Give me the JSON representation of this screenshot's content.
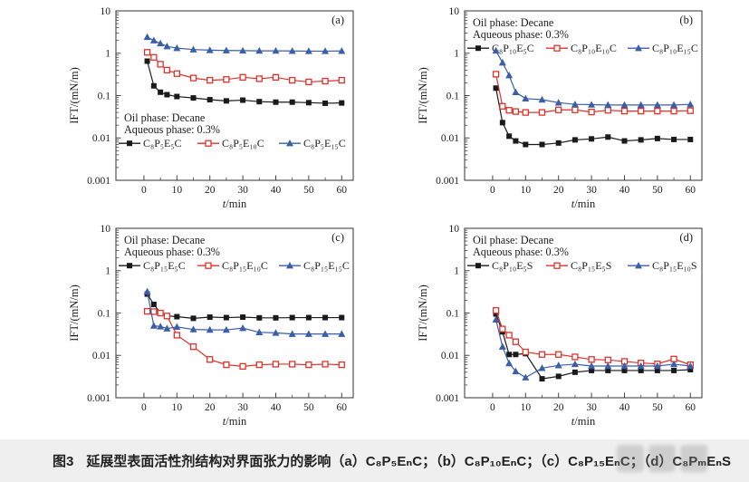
{
  "caption": {
    "label": "图3",
    "text": "延展型表面活性剂结构对界面张力的影响（a）C₈P₅EₙC；（b）C₈P₁₀EₙC；（c）C₈P₁₅EₙC；（d）C₈PₘEₙS"
  },
  "colors": {
    "black_series": "#1a1a1a",
    "red_series": "#e0312b",
    "blue_series": "#3a5fa8",
    "axis": "#444444",
    "caption_bg": "#efefef"
  },
  "chart_data": [
    {
      "type": "line",
      "panel_label": "(a)",
      "info_lines": [
        "Oil phase: Decane",
        "Aqueous phase: 0.3%"
      ],
      "info_position": "bottom-left",
      "xlabel_italic": "t",
      "xlabel_rest": "/min",
      "ylabel": "IFT/(mN/m)",
      "x_ticks": [
        0,
        10,
        20,
        30,
        40,
        50,
        60
      ],
      "y_ticks": [
        10,
        1,
        0.1,
        0.01,
        0.001
      ],
      "ylog": true,
      "xlim": [
        -8.5,
        63.5
      ],
      "x": [
        1,
        3,
        5,
        7,
        10,
        15,
        20,
        25,
        30,
        35,
        40,
        45,
        50,
        55,
        60
      ],
      "series": [
        {
          "name": "C₈P₅E₅C",
          "color": "#1a1a1a",
          "marker": "square-filled",
          "values": [
            0.65,
            0.17,
            0.12,
            0.105,
            0.095,
            0.088,
            0.08,
            0.075,
            0.078,
            0.072,
            0.07,
            0.07,
            0.068,
            0.066,
            0.067
          ]
        },
        {
          "name": "C₈P₅E₁₀C",
          "color": "#e0312b",
          "marker": "square-open",
          "values": [
            1.05,
            0.8,
            0.55,
            0.4,
            0.33,
            0.26,
            0.23,
            0.24,
            0.27,
            0.25,
            0.27,
            0.23,
            0.21,
            0.22,
            0.23
          ]
        },
        {
          "name": "C₈P₅E₁₅C",
          "color": "#3a5fa8",
          "marker": "triangle-filled",
          "values": [
            2.4,
            2.0,
            1.7,
            1.45,
            1.32,
            1.22,
            1.18,
            1.16,
            1.15,
            1.14,
            1.14,
            1.13,
            1.12,
            1.12,
            1.13
          ]
        }
      ]
    },
    {
      "type": "line",
      "panel_label": "(b)",
      "info_lines": [
        "Oil phase: Decane",
        "Aqueous phase: 0.3%"
      ],
      "info_position": "top-left",
      "xlabel_italic": "t",
      "xlabel_rest": "/min",
      "ylabel": "IFT/(mN/m)",
      "x_ticks": [
        0,
        10,
        20,
        30,
        40,
        50,
        60
      ],
      "y_ticks": [
        10,
        1,
        0.1,
        0.01,
        0.001
      ],
      "ylog": true,
      "xlim": [
        -8.5,
        63.5
      ],
      "x": [
        1,
        3,
        5,
        7,
        10,
        15,
        20,
        25,
        30,
        35,
        40,
        45,
        50,
        55,
        60
      ],
      "series": [
        {
          "name": "C₈P₁₀E₅C",
          "color": "#1a1a1a",
          "marker": "square-filled",
          "values": [
            0.15,
            0.023,
            0.011,
            0.0085,
            0.007,
            0.007,
            0.0076,
            0.009,
            0.0095,
            0.0105,
            0.0085,
            0.009,
            0.0097,
            0.0092,
            0.0092
          ]
        },
        {
          "name": "C₈P₁₀E₁₀C",
          "color": "#e0312b",
          "marker": "square-open",
          "values": [
            0.32,
            0.056,
            0.045,
            0.042,
            0.04,
            0.04,
            0.046,
            0.046,
            0.041,
            0.045,
            0.043,
            0.043,
            0.043,
            0.043,
            0.044
          ]
        },
        {
          "name": "C₈P₁₀E₁₅C",
          "color": "#3a5fa8",
          "marker": "triangle-filled",
          "values": [
            1.15,
            0.6,
            0.3,
            0.12,
            0.085,
            0.08,
            0.068,
            0.062,
            0.061,
            0.06,
            0.06,
            0.06,
            0.06,
            0.06,
            0.062
          ]
        }
      ]
    },
    {
      "type": "line",
      "panel_label": "(c)",
      "info_lines": [
        "Oil phase: Decane",
        "Aqueous phase: 0.3%"
      ],
      "info_position": "top-left",
      "xlabel_italic": "t",
      "xlabel_rest": "/min",
      "ylabel": "IFT/(mN/m)",
      "x_ticks": [
        0,
        10,
        20,
        30,
        40,
        50,
        60
      ],
      "y_ticks": [
        10,
        1,
        0.1,
        0.01,
        0.001
      ],
      "ylog": true,
      "xlim": [
        -8.5,
        63.5
      ],
      "x": [
        1,
        3,
        5,
        7,
        10,
        15,
        20,
        25,
        30,
        35,
        40,
        45,
        50,
        55,
        60
      ],
      "series": [
        {
          "name": "C₈P₁₅E₅C",
          "color": "#1a1a1a",
          "marker": "square-filled",
          "values": [
            0.28,
            0.16,
            0.1,
            0.086,
            0.082,
            0.075,
            0.08,
            0.078,
            0.08,
            0.077,
            0.077,
            0.078,
            0.078,
            0.078,
            0.078
          ]
        },
        {
          "name": "C₈P₁₅E₁₀C",
          "color": "#e0312b",
          "marker": "square-open",
          "values": [
            0.11,
            0.108,
            0.1,
            0.085,
            0.03,
            0.016,
            0.008,
            0.006,
            0.0055,
            0.006,
            0.0062,
            0.0062,
            0.006,
            0.0062,
            0.006
          ]
        },
        {
          "name": "C₈P₁₅E₁₅C",
          "color": "#3a5fa8",
          "marker": "triangle-filled",
          "values": [
            0.32,
            0.05,
            0.048,
            0.043,
            0.047,
            0.041,
            0.04,
            0.04,
            0.044,
            0.035,
            0.034,
            0.032,
            0.032,
            0.032,
            0.032
          ]
        }
      ]
    },
    {
      "type": "line",
      "panel_label": "(d)",
      "info_lines": [
        "Oil phase: Decane",
        "Aqueous phase: 0.3%"
      ],
      "info_position": "top-left",
      "xlabel_italic": "t",
      "xlabel_rest": "/min",
      "ylabel": "IFT/(mN/m)",
      "x_ticks": [
        0,
        10,
        20,
        30,
        40,
        50,
        60
      ],
      "y_ticks": [
        10,
        1,
        0.1,
        0.01,
        0.001
      ],
      "ylog": true,
      "xlim": [
        -8.5,
        63.5
      ],
      "x": [
        1,
        3,
        5,
        7,
        10,
        15,
        20,
        25,
        30,
        35,
        40,
        45,
        50,
        55,
        60
      ],
      "series": [
        {
          "name": "C₈P₁₀E₅S",
          "color": "#1a1a1a",
          "marker": "square-filled",
          "values": [
            0.095,
            0.036,
            0.0105,
            0.0105,
            0.011,
            0.0028,
            0.0032,
            0.004,
            0.0044,
            0.0044,
            0.0044,
            0.0044,
            0.0044,
            0.0044,
            0.0046
          ]
        },
        {
          "name": "C₈P₁₅E₅S",
          "color": "#e0312b",
          "marker": "square-open",
          "values": [
            0.115,
            0.042,
            0.03,
            0.021,
            0.012,
            0.0105,
            0.0105,
            0.0092,
            0.008,
            0.0078,
            0.0072,
            0.0066,
            0.0063,
            0.0082,
            0.006
          ]
        },
        {
          "name": "C₈P₁₅E₁₀S",
          "color": "#3a5fa8",
          "marker": "triangle-filled",
          "values": [
            0.07,
            0.016,
            0.0065,
            0.0042,
            0.003,
            0.005,
            0.0058,
            0.0062,
            0.0056,
            0.0056,
            0.0056,
            0.0056,
            0.0056,
            0.0062,
            0.0056
          ]
        }
      ]
    }
  ]
}
